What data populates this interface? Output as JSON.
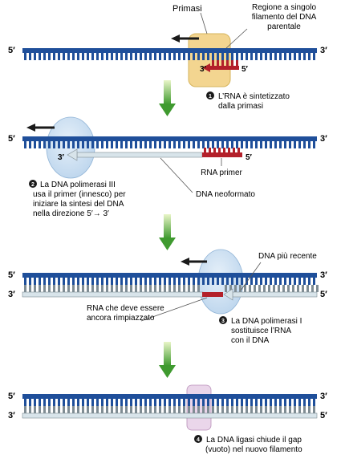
{
  "labels": {
    "primasi": "Primasi",
    "region_line1": "Regione a singolo",
    "region_line2": "filamento del DNA",
    "region_line3": "parentale",
    "prime5": "5′",
    "prime3": "3′"
  },
  "steps": [
    {
      "number": "1",
      "lines": [
        "L’RNA è sintetizzato",
        "dalla primasi"
      ]
    },
    {
      "number": "2",
      "lines": [
        "La DNA polimerasi III",
        "usa il primer (innesco) per",
        "iniziare la sintesi del DNA",
        "nella direzione 5′→ 3′"
      ]
    },
    {
      "number": "3",
      "lines": [
        "La DNA polimerasi I",
        "sostituisce l’RNA",
        "con il DNA"
      ]
    },
    {
      "number": "4",
      "lines": [
        "La DNA ligasi chiude il gap",
        "(vuoto) nel nuovo filamento"
      ]
    }
  ],
  "callouts": {
    "rna_primer": "RNA primer",
    "dna_neoformato": "DNA neoformato",
    "dna_piu_recente": "DNA più recente",
    "rna_replace_line1": "RNA che deve essere",
    "rna_replace_line2": "ancora rimpiazzato"
  },
  "colors": {
    "dna_blue": "#1f4f9a",
    "new_strand": "#d8e4ea",
    "rna_red": "#b3202a",
    "primase": "#f3d590",
    "polymerase": "#c7dcef",
    "ligase": "#ead6ea",
    "arrow_green": "#3f9a2f"
  }
}
